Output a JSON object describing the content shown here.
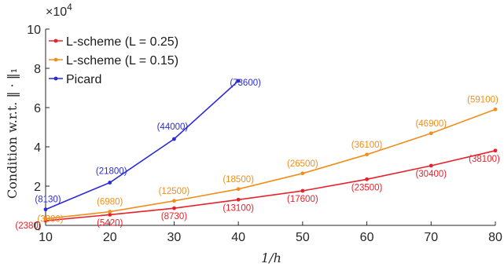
{
  "chart_data": {
    "type": "line",
    "x": [
      10,
      20,
      30,
      40,
      50,
      60,
      70,
      80
    ],
    "xlabel": "1/h",
    "ylabel": "Condition w.r.t. ‖ · ‖₁",
    "y_multiplier": "×10",
    "y_multiplier_exp": "4",
    "xlim": [
      10,
      80
    ],
    "ylim": [
      0,
      100000
    ],
    "xticks": [
      "10",
      "20",
      "30",
      "40",
      "50",
      "60",
      "70",
      "80"
    ],
    "yticks": [
      "0",
      "2",
      "4",
      "6",
      "8",
      "10"
    ],
    "grid": false,
    "legend_position": "top-left",
    "series": [
      {
        "name": "L-scheme (L = 0.25)",
        "color": "#e8202a",
        "x": [
          10,
          20,
          30,
          40,
          50,
          60,
          70,
          80
        ],
        "values": [
          2380,
          5420,
          8730,
          13100,
          17600,
          23500,
          30400,
          38100
        ],
        "labels": [
          "(2380)",
          "(5420)",
          "(8730)",
          "(13100)",
          "(17600)",
          "(23500)",
          "(30400)",
          "(38100)"
        ]
      },
      {
        "name": "L-scheme (L = 0.15)",
        "color": "#f28e1c",
        "x": [
          10,
          20,
          30,
          40,
          50,
          60,
          70,
          80
        ],
        "values": [
          3380,
          6980,
          12500,
          18500,
          26500,
          36100,
          46900,
          59100
        ],
        "labels": [
          "(3380)",
          "(6980)",
          "(12500)",
          "(18500)",
          "(26500)",
          "(36100)",
          "(46900)",
          "(59100)"
        ]
      },
      {
        "name": "Picard",
        "color": "#2a2ad8",
        "x": [
          10,
          20,
          30,
          40
        ],
        "values": [
          8130,
          21800,
          44000,
          73600
        ],
        "labels": [
          "(8130)",
          "(21800)",
          "(44000)",
          "(73600)"
        ]
      }
    ]
  }
}
